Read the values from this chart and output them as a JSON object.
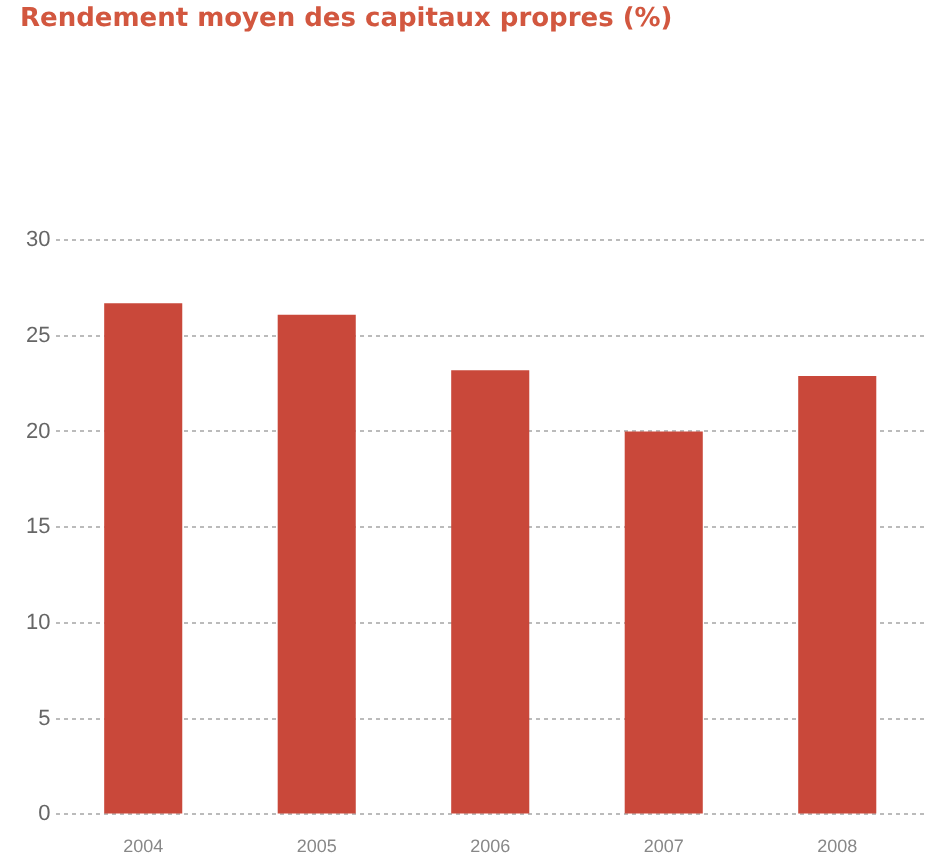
{
  "chart_data": {
    "type": "bar",
    "title": "Rendement moyen des capitaux propres (%)",
    "categories": [
      "2004",
      "2005",
      "2006",
      "2007",
      "2008"
    ],
    "values": [
      26.7,
      26.1,
      23.2,
      20,
      22.9
    ],
    "color": "#c9483a",
    "ylim": [
      0,
      30
    ],
    "yticks": [
      0,
      5,
      10,
      15,
      20,
      25,
      30
    ],
    "grid": "y",
    "legend": false
  }
}
